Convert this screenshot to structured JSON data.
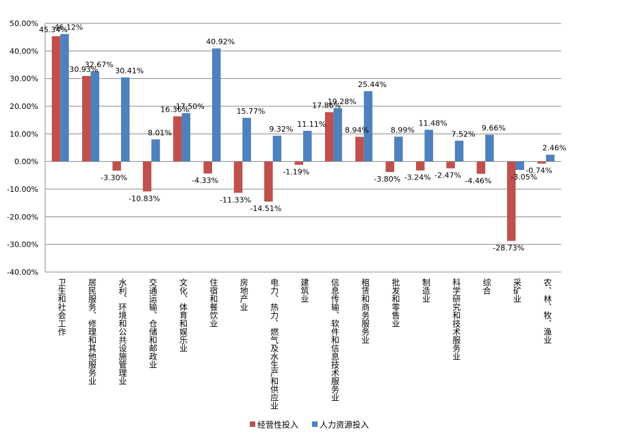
{
  "chart_data": {
    "type": "bar",
    "categories": [
      "卫生和社会工作",
      "居民服务、修理和其他服务业",
      "水利、环境和公共设施管理业",
      "交通运输、仓储和邮政业",
      "文化、体育和娱乐业",
      "住宿和餐饮业",
      "房地产业",
      "电力、热力、燃气及水生产和供应业",
      "建筑业",
      "信息传输、软件和信息技术服务业",
      "租赁和商务服务业",
      "批发和零售业",
      "制造业",
      "科学研究和技术服务业",
      "综合",
      "采矿业",
      "农、林、牧、渔业"
    ],
    "series": [
      {
        "name": "经营性投入",
        "color": "#c0504d",
        "values": [
          45.34,
          30.93,
          -3.3,
          -10.83,
          16.36,
          -4.33,
          -11.33,
          -14.51,
          -1.19,
          17.86,
          8.94,
          -3.8,
          -3.24,
          -2.47,
          -4.46,
          -28.73,
          -0.74
        ],
        "labels": [
          "45.34%",
          "30.93%",
          "-3.30%",
          "-10.83%",
          "16.36%",
          "-4.33%",
          "-11.33%",
          "-14.51%",
          "-1.19%",
          "17.86%",
          "8.94%",
          "-3.80%",
          "-3.24%",
          "-2.47%",
          "-4.46%",
          "-28.73%",
          "-0.74%"
        ]
      },
      {
        "name": "人力资源投入",
        "color": "#4f81bd",
        "values": [
          46.12,
          32.67,
          30.41,
          8.01,
          17.5,
          40.92,
          15.77,
          9.32,
          11.11,
          19.28,
          25.44,
          8.99,
          11.48,
          7.52,
          9.66,
          -3.05,
          2.46
        ],
        "labels": [
          "46.12%",
          "32.67%",
          "30.41%",
          "8.01%",
          "17.50%",
          "40.92%",
          "15.77%",
          "9.32%",
          "11.11%",
          "19.28%",
          "25.44%",
          "8.99%",
          "11.48%",
          "7.52%",
          "9.66%",
          "-3.05%",
          "2.46%"
        ]
      }
    ],
    "ylim": [
      -40,
      50
    ],
    "yticks": [
      "50.00%",
      "40.00%",
      "30.00%",
      "20.00%",
      "10.00%",
      "0.00%",
      "-10.00%",
      "-20.00%",
      "-30.00%",
      "-40.00%"
    ],
    "ytick_values": [
      50,
      40,
      30,
      20,
      10,
      0,
      -10,
      -20,
      -30,
      -40
    ],
    "grid": true,
    "legend_position": "bottom"
  }
}
